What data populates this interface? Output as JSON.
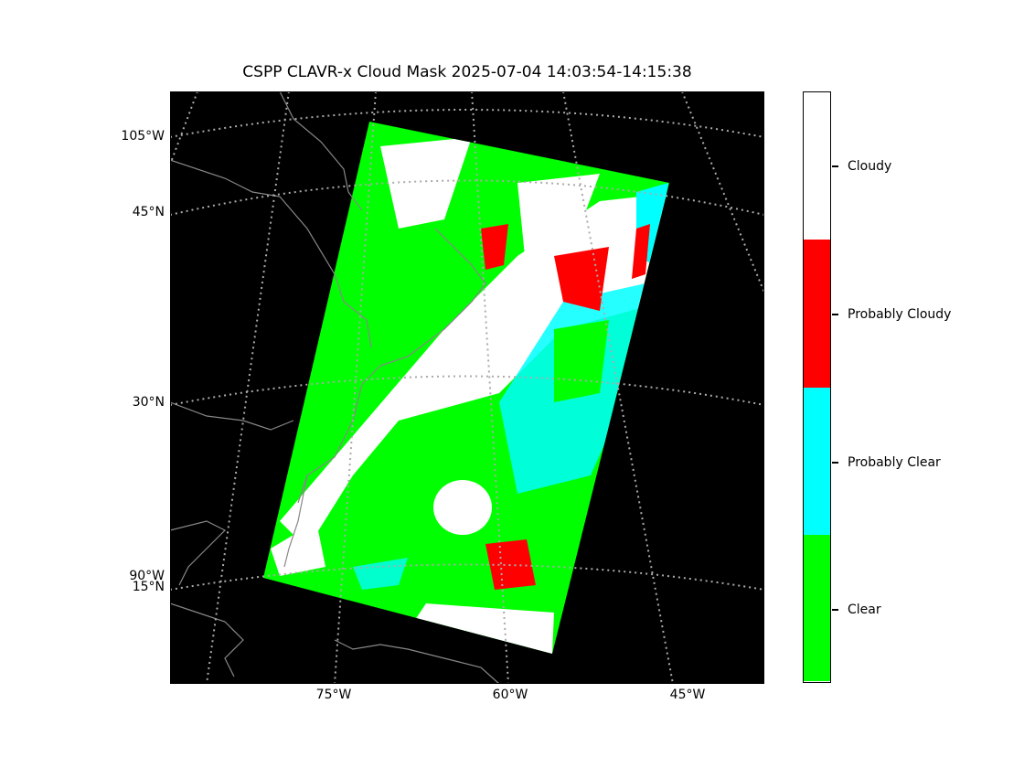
{
  "title": "CSPP CLAVR-x Cloud Mask 2025-07-04 14:03:54-14:15:38",
  "map": {
    "left_labels": [
      "105°W",
      "45°N",
      "30°N",
      "90°W",
      "15°N"
    ],
    "bottom_labels": [
      "75°W",
      "60°W",
      "45°W"
    ],
    "background_color": "#000000",
    "graticule_color": "#aaaaaa",
    "coastline_color": "#888888"
  },
  "colorbar": {
    "classes": [
      {
        "label": "Cloudy",
        "color": "#ffffff"
      },
      {
        "label": "Probably Cloudy",
        "color": "#ff0000"
      },
      {
        "label": "Probably Clear",
        "color": "#00ffff"
      },
      {
        "label": "Clear",
        "color": "#00ff00"
      }
    ]
  }
}
